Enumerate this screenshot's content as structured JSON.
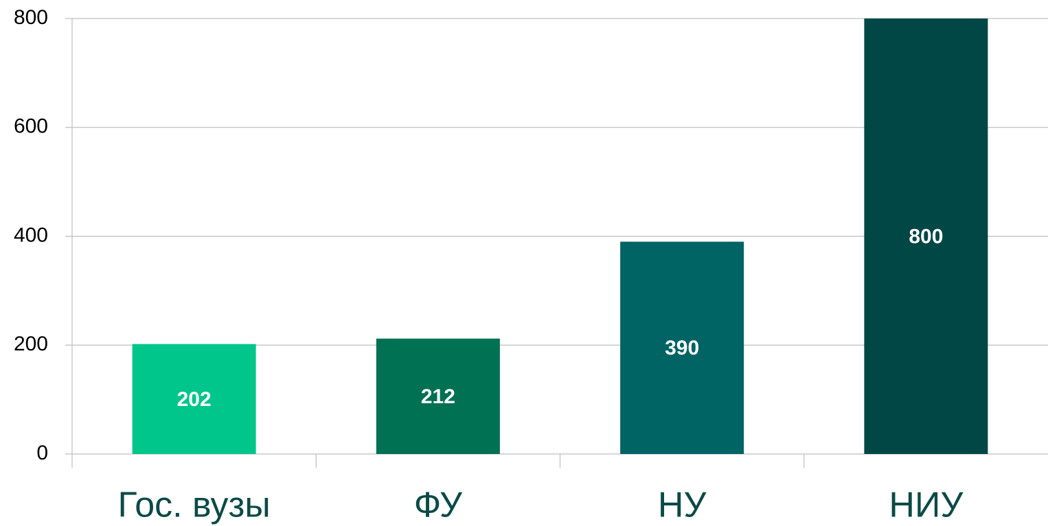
{
  "chart_data": {
    "type": "bar",
    "categories": [
      "Гос. вузы",
      "ФУ",
      "НУ",
      "НИУ"
    ],
    "values": [
      202,
      212,
      390,
      800
    ],
    "colors": [
      "#00c68b",
      "#007152",
      "#006464",
      "#004745"
    ],
    "ylim": [
      0,
      800
    ],
    "yticks": [
      0,
      200,
      400,
      600,
      800
    ],
    "grid": true
  }
}
